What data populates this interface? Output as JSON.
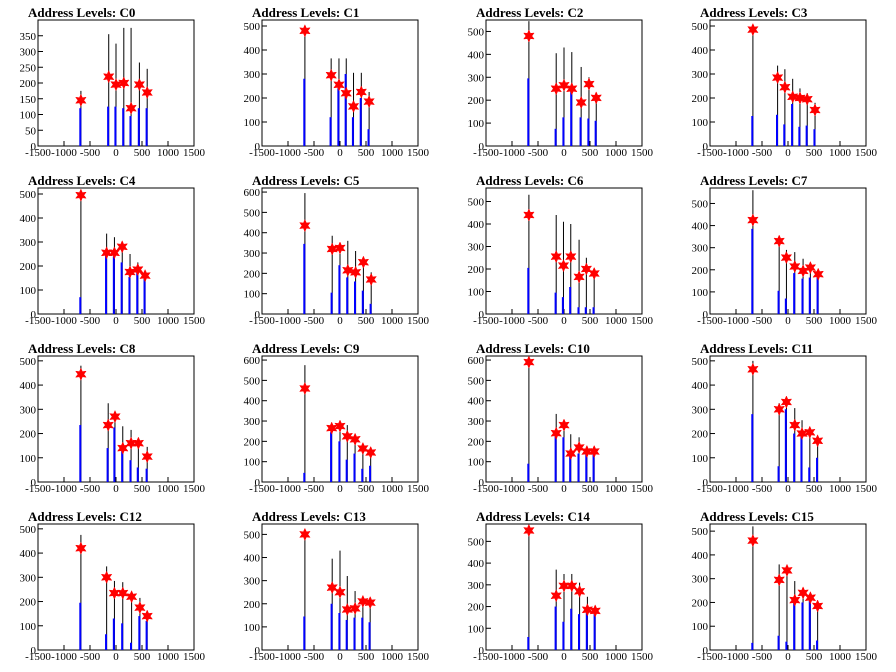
{
  "chart_data": [
    {
      "type": "bar",
      "title": "Address Levels: C0",
      "xlim": [
        -1500,
        1500
      ],
      "xticks": [
        -1500,
        -1000,
        -500,
        0,
        500,
        1000,
        1500
      ],
      "ylim": [
        0,
        400
      ],
      "yticks": [
        0,
        50,
        100,
        150,
        200,
        250,
        300,
        350
      ],
      "x": [
        -675,
        -140,
        0,
        150,
        290,
        450,
        600
      ],
      "black_values": [
        175,
        355,
        325,
        375,
        375,
        265,
        245
      ],
      "blue_values": [
        120,
        125,
        125,
        120,
        95,
        120,
        120
      ],
      "red_star_values": [
        145,
        220,
        195,
        200,
        120,
        195,
        170
      ]
    },
    {
      "type": "bar",
      "title": "Address Levels: C1",
      "xlim": [
        -1500,
        1500
      ],
      "xticks": [
        -1500,
        -1000,
        -500,
        0,
        500,
        1000,
        1500
      ],
      "ylim": [
        0,
        525
      ],
      "yticks": [
        0,
        100,
        200,
        300,
        400,
        500
      ],
      "x": [
        -675,
        -170,
        -20,
        120,
        260,
        410,
        560
      ],
      "black_values": [
        480,
        365,
        365,
        365,
        305,
        305,
        225
      ],
      "blue_values": [
        280,
        120,
        240,
        300,
        120,
        200,
        70
      ],
      "red_star_values": [
        480,
        295,
        255,
        220,
        165,
        225,
        185
      ]
    },
    {
      "type": "bar",
      "title": "Address Levels: C2",
      "xlim": [
        -1500,
        1500
      ],
      "xticks": [
        -1500,
        -1000,
        -500,
        0,
        500,
        1000,
        1500
      ],
      "ylim": [
        0,
        550
      ],
      "yticks": [
        0,
        100,
        200,
        300,
        400,
        500
      ],
      "x": [
        -675,
        -150,
        0,
        150,
        330,
        480,
        620
      ],
      "black_values": [
        545,
        405,
        430,
        410,
        345,
        300,
        215
      ],
      "blue_values": [
        295,
        75,
        125,
        250,
        125,
        120,
        110
      ],
      "red_star_values": [
        480,
        250,
        265,
        250,
        190,
        270,
        210
      ]
    },
    {
      "type": "bar",
      "title": "Address Levels: C3",
      "xlim": [
        -1500,
        1500
      ],
      "xticks": [
        -1500,
        -1000,
        -500,
        0,
        500,
        1000,
        1500
      ],
      "ylim": [
        0,
        525
      ],
      "yticks": [
        0,
        100,
        200,
        300,
        400,
        500
      ],
      "x": [
        -675,
        -200,
        -60,
        90,
        230,
        370,
        520
      ],
      "black_values": [
        480,
        335,
        320,
        280,
        240,
        220,
        180
      ],
      "blue_values": [
        125,
        130,
        90,
        175,
        80,
        85,
        70
      ],
      "red_star_values": [
        485,
        285,
        245,
        205,
        200,
        195,
        150
      ]
    },
    {
      "type": "bar",
      "title": "Address Levels: C4",
      "xlim": [
        -1500,
        1500
      ],
      "xticks": [
        -1500,
        -1000,
        -500,
        0,
        500,
        1000,
        1500
      ],
      "ylim": [
        0,
        525
      ],
      "yticks": [
        0,
        100,
        200,
        300,
        400,
        500
      ],
      "x": [
        -675,
        -180,
        -30,
        120,
        270,
        420,
        560
      ],
      "black_values": [
        505,
        335,
        320,
        295,
        250,
        215,
        170
      ],
      "blue_values": [
        70,
        250,
        240,
        215,
        155,
        190,
        155
      ],
      "red_star_values": [
        495,
        255,
        255,
        280,
        175,
        185,
        160
      ]
    },
    {
      "type": "bar",
      "title": "Address Levels: C5",
      "xlim": [
        -1500,
        1500
      ],
      "xticks": [
        -1500,
        -1000,
        -500,
        0,
        500,
        1000,
        1500
      ],
      "ylim": [
        0,
        620
      ],
      "yticks": [
        0,
        100,
        200,
        300,
        400,
        500,
        600
      ],
      "x": [
        -675,
        -150,
        0,
        150,
        300,
        450,
        600
      ],
      "black_values": [
        595,
        385,
        350,
        360,
        310,
        255,
        205
      ],
      "blue_values": [
        345,
        105,
        240,
        180,
        160,
        115,
        50
      ],
      "red_star_values": [
        435,
        320,
        325,
        215,
        205,
        255,
        170
      ]
    },
    {
      "type": "bar",
      "title": "Address Levels: C6",
      "xlim": [
        -1500,
        1500
      ],
      "xticks": [
        -1500,
        -1000,
        -500,
        0,
        500,
        1000,
        1500
      ],
      "ylim": [
        0,
        560
      ],
      "yticks": [
        0,
        100,
        200,
        300,
        400,
        500
      ],
      "x": [
        -675,
        -150,
        -10,
        130,
        290,
        430,
        580
      ],
      "black_values": [
        530,
        440,
        410,
        400,
        330,
        250,
        200
      ],
      "blue_values": [
        205,
        95,
        75,
        120,
        30,
        30,
        30
      ],
      "red_star_values": [
        440,
        255,
        215,
        255,
        165,
        200,
        180
      ]
    },
    {
      "type": "bar",
      "title": "Address Levels: C7",
      "xlim": [
        -1500,
        1500
      ],
      "xticks": [
        -1500,
        -1000,
        -500,
        0,
        500,
        1000,
        1500
      ],
      "ylim": [
        0,
        570
      ],
      "yticks": [
        0,
        100,
        200,
        300,
        400,
        500
      ],
      "x": [
        -675,
        -170,
        -30,
        130,
        290,
        430,
        580
      ],
      "black_values": [
        560,
        340,
        290,
        280,
        250,
        220,
        190
      ],
      "blue_values": [
        385,
        105,
        70,
        185,
        160,
        165,
        175
      ],
      "red_star_values": [
        425,
        330,
        255,
        215,
        195,
        210,
        180
      ]
    },
    {
      "type": "bar",
      "title": "Address Levels: C8",
      "xlim": [
        -1500,
        1500
      ],
      "xticks": [
        -1500,
        -1000,
        -500,
        0,
        500,
        1000,
        1500
      ],
      "ylim": [
        0,
        520
      ],
      "yticks": [
        0,
        100,
        200,
        300,
        400,
        500
      ],
      "x": [
        -675,
        -150,
        -20,
        130,
        290,
        430,
        600
      ],
      "black_values": [
        480,
        325,
        290,
        230,
        215,
        180,
        145
      ],
      "blue_values": [
        235,
        140,
        225,
        140,
        90,
        60,
        55
      ],
      "red_star_values": [
        445,
        235,
        270,
        140,
        160,
        160,
        105
      ]
    },
    {
      "type": "bar",
      "title": "Address Levels: C9",
      "xlim": [
        -1500,
        1500
      ],
      "xticks": [
        -1500,
        -1000,
        -500,
        0,
        500,
        1000,
        1500
      ],
      "ylim": [
        0,
        620
      ],
      "yticks": [
        0,
        100,
        200,
        300,
        400,
        500,
        600
      ],
      "x": [
        -675,
        -160,
        0,
        140,
        290,
        440,
        590
      ],
      "black_values": [
        575,
        265,
        285,
        280,
        220,
        170,
        130
      ],
      "blue_values": [
        45,
        245,
        200,
        110,
        140,
        65,
        80
      ],
      "red_star_values": [
        460,
        265,
        275,
        225,
        210,
        165,
        145
      ]
    },
    {
      "type": "bar",
      "title": "Address Levels: C10",
      "xlim": [
        -1500,
        1500
      ],
      "xticks": [
        -1500,
        -1000,
        -500,
        0,
        500,
        1000,
        1500
      ],
      "ylim": [
        0,
        620
      ],
      "yticks": [
        0,
        100,
        200,
        300,
        400,
        500,
        600
      ],
      "x": [
        -675,
        -150,
        0,
        130,
        290,
        440,
        580
      ],
      "black_values": [
        590,
        335,
        295,
        235,
        220,
        175,
        150
      ],
      "blue_values": [
        90,
        240,
        220,
        145,
        140,
        140,
        140
      ],
      "red_star_values": [
        590,
        240,
        280,
        140,
        170,
        150,
        150
      ]
    },
    {
      "type": "bar",
      "title": "Address Levels: C11",
      "xlim": [
        -1500,
        1500
      ],
      "xticks": [
        -1500,
        -1000,
        -500,
        0,
        500,
        1000,
        1500
      ],
      "ylim": [
        0,
        520
      ],
      "yticks": [
        0,
        100,
        200,
        300,
        400,
        500
      ],
      "x": [
        -675,
        -170,
        -30,
        130,
        270,
        420,
        570
      ],
      "black_values": [
        500,
        325,
        330,
        305,
        255,
        200,
        160
      ],
      "blue_values": [
        280,
        65,
        300,
        200,
        200,
        60,
        100
      ],
      "red_star_values": [
        465,
        300,
        330,
        235,
        200,
        205,
        170
      ]
    },
    {
      "type": "bar",
      "title": "Address Levels: C12",
      "xlim": [
        -1500,
        1500
      ],
      "xticks": [
        -1500,
        -1000,
        -500,
        0,
        500,
        1000,
        1500
      ],
      "ylim": [
        0,
        520
      ],
      "yticks": [
        0,
        100,
        200,
        300,
        400,
        500
      ],
      "x": [
        -675,
        -180,
        -30,
        130,
        300,
        460,
        600
      ],
      "black_values": [
        475,
        345,
        285,
        280,
        225,
        215,
        160
      ],
      "blue_values": [
        195,
        65,
        130,
        110,
        30,
        140,
        120
      ],
      "red_star_values": [
        420,
        300,
        235,
        235,
        220,
        175,
        140
      ]
    },
    {
      "type": "bar",
      "title": "Address Levels: C13",
      "xlim": [
        -1500,
        1500
      ],
      "xticks": [
        -1500,
        -1000,
        -500,
        0,
        500,
        1000,
        1500
      ],
      "ylim": [
        0,
        545
      ],
      "yticks": [
        0,
        100,
        200,
        300,
        400,
        500
      ],
      "x": [
        -675,
        -150,
        0,
        140,
        290,
        440,
        580
      ],
      "black_values": [
        520,
        395,
        430,
        320,
        255,
        220,
        210
      ],
      "blue_values": [
        145,
        200,
        160,
        130,
        140,
        140,
        120
      ],
      "red_star_values": [
        500,
        270,
        250,
        175,
        180,
        210,
        205
      ]
    },
    {
      "type": "bar",
      "title": "Address Levels: C14",
      "xlim": [
        -1500,
        1500
      ],
      "xticks": [
        -1500,
        -1000,
        -500,
        0,
        500,
        1000,
        1500
      ],
      "ylim": [
        0,
        580
      ],
      "yticks": [
        0,
        100,
        200,
        300,
        400,
        500
      ],
      "x": [
        -675,
        -150,
        0,
        150,
        300,
        450,
        600
      ],
      "black_values": [
        545,
        370,
        350,
        350,
        310,
        245,
        200
      ],
      "blue_values": [
        60,
        200,
        130,
        190,
        165,
        180,
        170
      ],
      "red_star_values": [
        550,
        250,
        295,
        295,
        270,
        185,
        180
      ]
    },
    {
      "type": "bar",
      "title": "Address Levels: C15",
      "xlim": [
        -1500,
        1500
      ],
      "xticks": [
        -1500,
        -1000,
        -500,
        0,
        500,
        1000,
        1500
      ],
      "ylim": [
        0,
        530
      ],
      "yticks": [
        0,
        100,
        200,
        300,
        400,
        500
      ],
      "x": [
        -675,
        -170,
        -20,
        130,
        290,
        430,
        570
      ],
      "black_values": [
        520,
        360,
        350,
        290,
        260,
        200,
        190
      ],
      "blue_values": [
        30,
        60,
        35,
        200,
        200,
        210,
        40
      ],
      "red_star_values": [
        460,
        295,
        335,
        210,
        240,
        220,
        185
      ]
    }
  ]
}
